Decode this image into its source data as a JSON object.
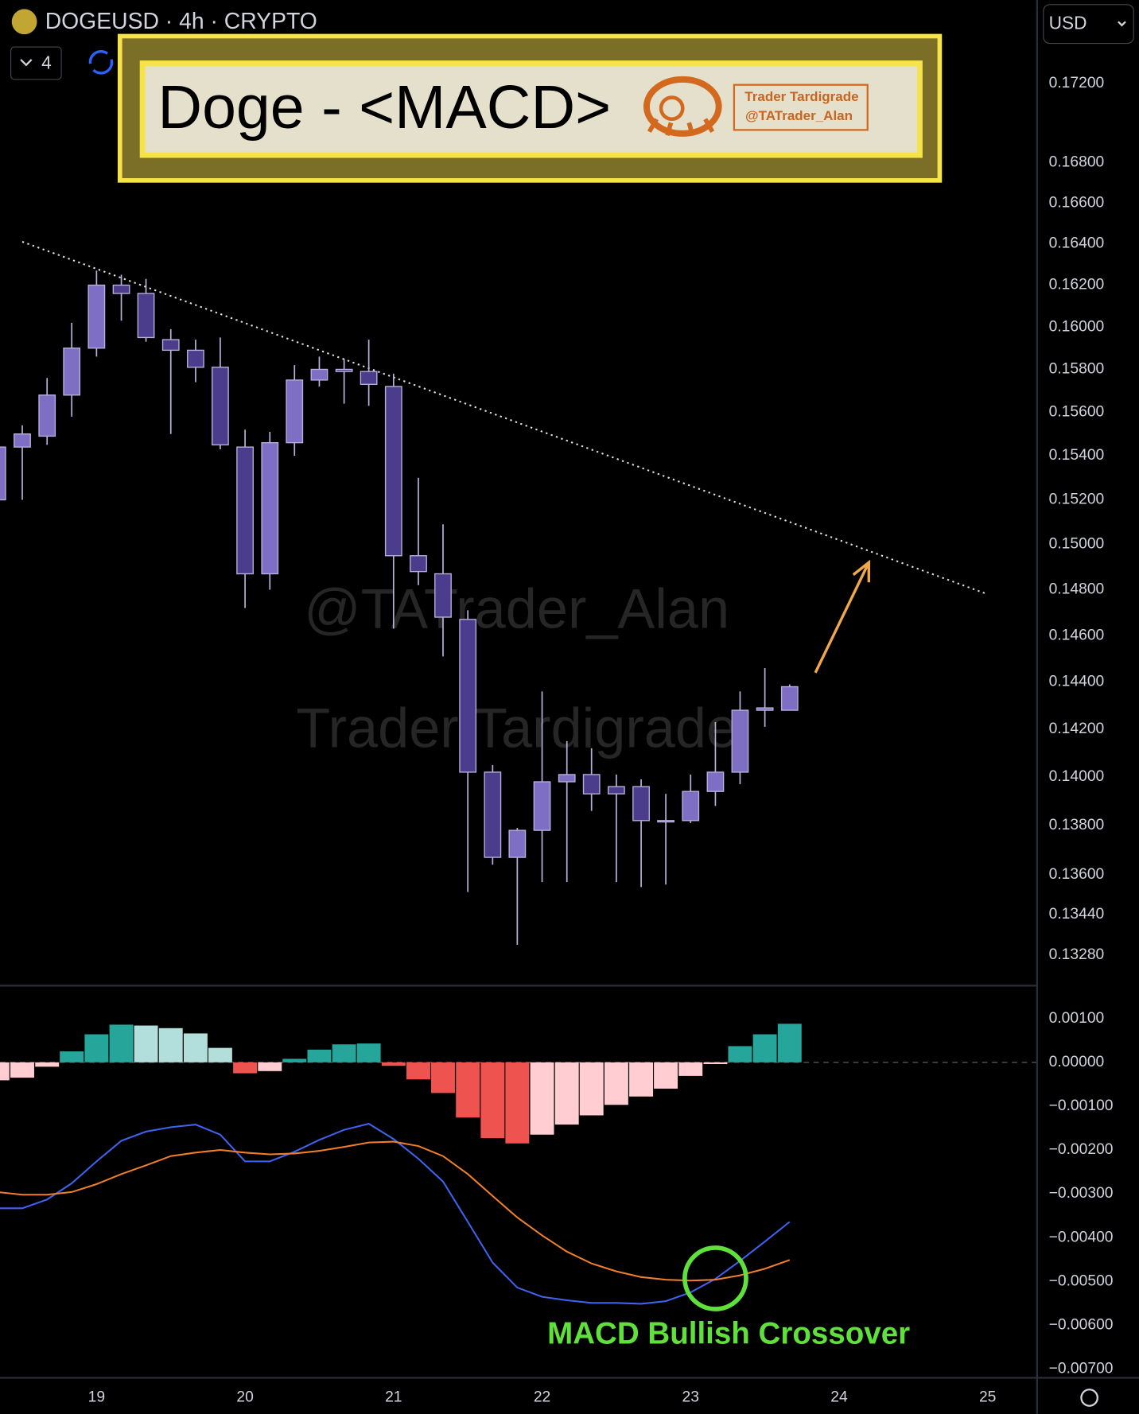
{
  "header": {
    "symbol": "DOGEUSD · 4h · CRYPTO",
    "interval_count": "4",
    "currency": "USD"
  },
  "banner": {
    "title": "Doge - <MACD>",
    "brand": "Trader Tardigrade",
    "handle": "@TATrader_Alan"
  },
  "chart_data": [
    {
      "type": "candlestick",
      "watermarks": [
        "@TATrader_Alan",
        "Trader Tardigrade"
      ],
      "x": [
        18.333,
        18.5,
        18.667,
        18.833,
        19,
        19.167,
        19.333,
        19.5,
        19.667,
        19.833,
        20,
        20.167,
        20.333,
        20.5,
        20.667,
        20.833,
        21,
        21.167,
        21.333,
        21.5,
        21.667,
        21.833,
        22,
        22.167,
        22.333,
        22.5,
        22.667,
        22.833,
        23,
        23.167,
        23.333,
        23.5,
        23.667
      ],
      "open": [
        0.152,
        0.1544,
        0.1549,
        0.1568,
        0.159,
        0.162,
        0.1616,
        0.1594,
        0.1589,
        0.1581,
        0.1544,
        0.1487,
        0.1546,
        0.1575,
        0.158,
        0.1579,
        0.1572,
        0.1495,
        0.1487,
        0.1467,
        0.1402,
        0.1367,
        0.1378,
        0.1398,
        0.1401,
        0.1396,
        0.1396,
        0.1382,
        0.1382,
        0.1394,
        0.1402,
        0.1428,
        0.1428
      ],
      "high": [
        0.1548,
        0.1554,
        0.1576,
        0.1602,
        0.1627,
        0.1625,
        0.1623,
        0.1599,
        0.1594,
        0.1595,
        0.1552,
        0.1551,
        0.1582,
        0.1586,
        0.1585,
        0.1594,
        0.1578,
        0.153,
        0.1509,
        0.1471,
        0.1405,
        0.1379,
        0.1436,
        0.1415,
        0.1412,
        0.1401,
        0.1399,
        0.1393,
        0.1401,
        0.1423,
        0.1436,
        0.1446,
        0.1439
      ],
      "low": [
        0.1515,
        0.152,
        0.1545,
        0.1558,
        0.1586,
        0.1603,
        0.1593,
        0.155,
        0.1574,
        0.1543,
        0.1472,
        0.148,
        0.154,
        0.1572,
        0.1564,
        0.1563,
        0.1463,
        0.1482,
        0.1451,
        0.1353,
        0.1364,
        0.1332,
        0.1357,
        0.1357,
        0.1386,
        0.1357,
        0.1355,
        0.1356,
        0.1381,
        0.1388,
        0.1397,
        0.1421,
        0.1428
      ],
      "close": [
        0.1544,
        0.155,
        0.1568,
        0.159,
        0.162,
        0.1616,
        0.1595,
        0.1589,
        0.1581,
        0.1545,
        0.1487,
        0.1546,
        0.1575,
        0.158,
        0.1579,
        0.1573,
        0.1495,
        0.1488,
        0.1468,
        0.1402,
        0.1367,
        0.1378,
        0.1398,
        0.1401,
        0.1393,
        0.1393,
        0.1382,
        0.1382,
        0.1394,
        0.1402,
        0.1428,
        0.1429,
        0.1438
      ],
      "up_color": "#7f6fc4",
      "down_color": "#4b3d8c",
      "wick_color": "#b9b0dc",
      "log_scale": true,
      "xlim": [
        18.35,
        25.333
      ],
      "ylim": [
        0.1317,
        0.1763
      ],
      "yticks": [
        {
          "value": 0.172,
          "label": "0.17200"
        },
        {
          "value": 0.168,
          "label": "0.16800"
        },
        {
          "value": 0.166,
          "label": "0.16600"
        },
        {
          "value": 0.164,
          "label": "0.16400"
        },
        {
          "value": 0.162,
          "label": "0.16200"
        },
        {
          "value": 0.16,
          "label": "0.16000"
        },
        {
          "value": 0.158,
          "label": "0.15800"
        },
        {
          "value": 0.156,
          "label": "0.15600"
        },
        {
          "value": 0.154,
          "label": "0.15400"
        },
        {
          "value": 0.152,
          "label": "0.15200"
        },
        {
          "value": 0.15,
          "label": "0.15000"
        },
        {
          "value": 0.148,
          "label": "0.14800"
        },
        {
          "value": 0.146,
          "label": "0.14600"
        },
        {
          "value": 0.144,
          "label": "0.14400"
        },
        {
          "value": 0.142,
          "label": "0.14200"
        },
        {
          "value": 0.14,
          "label": "0.14000"
        },
        {
          "value": 0.138,
          "label": "0.13800"
        },
        {
          "value": 0.136,
          "label": "0.13600"
        },
        {
          "value": 0.1344,
          "label": "0.13440"
        },
        {
          "value": 0.1328,
          "label": "0.13280"
        }
      ],
      "trendline": {
        "x": [
          18.5,
          25
        ],
        "y": [
          0.1641,
          0.1478
        ],
        "color": "#e6e6e6"
      },
      "arrow": {
        "x": [
          23.84,
          24.2
        ],
        "y": [
          0.1444,
          0.1492
        ],
        "color": "#f0a94a"
      }
    },
    {
      "type": "macd",
      "x": [
        18.333,
        18.5,
        18.667,
        18.833,
        19,
        19.167,
        19.333,
        19.5,
        19.667,
        19.833,
        20,
        20.167,
        20.333,
        20.5,
        20.667,
        20.833,
        21,
        21.167,
        21.333,
        21.5,
        21.667,
        21.833,
        22,
        22.167,
        22.333,
        22.5,
        22.667,
        22.833,
        23,
        23.167,
        23.333,
        23.5,
        23.667
      ],
      "histogram": {
        "values": [
          -0.00041,
          -0.00035,
          -0.0001,
          0.00025,
          0.00064,
          0.00086,
          0.00084,
          0.00078,
          0.00066,
          0.00033,
          -0.00025,
          -0.0002,
          8e-05,
          0.00029,
          0.00041,
          0.00043,
          -8e-05,
          -0.00039,
          -0.0007,
          -0.00126,
          -0.00173,
          -0.00185,
          -0.00165,
          -0.00142,
          -0.00121,
          -0.00097,
          -0.00078,
          -0.0006,
          -0.00031,
          -4e-05,
          0.00037,
          0.00064,
          0.00088
        ],
        "colors": [
          "#ffcdd2",
          "#ffcdd2",
          "#ffcdd2",
          "#26a69a",
          "#26a69a",
          "#26a69a",
          "#b2dfdb",
          "#b2dfdb",
          "#b2dfdb",
          "#b2dfdb",
          "#ef5350",
          "#ffcdd2",
          "#26a69a",
          "#26a69a",
          "#26a69a",
          "#26a69a",
          "#ef5350",
          "#ef5350",
          "#ef5350",
          "#ef5350",
          "#ef5350",
          "#ef5350",
          "#ffcdd2",
          "#ffcdd2",
          "#ffcdd2",
          "#ffcdd2",
          "#ffcdd2",
          "#ffcdd2",
          "#ffcdd2",
          "#ffcdd2",
          "#26a69a",
          "#26a69a",
          "#26a69a"
        ]
      },
      "series": [
        {
          "color": "#3f63f0",
          "values": [
            -0.00333,
            -0.00333,
            -0.00313,
            -0.00276,
            -0.00226,
            -0.00179,
            -0.00158,
            -0.00148,
            -0.00142,
            -0.00165,
            -0.00226,
            -0.00226,
            -0.00204,
            -0.00177,
            -0.00154,
            -0.0014,
            -0.00175,
            -0.0022,
            -0.00272,
            -0.00364,
            -0.00457,
            -0.00514,
            -0.00535,
            -0.00543,
            -0.00549,
            -0.00549,
            -0.00551,
            -0.00545,
            -0.00525,
            -0.00494,
            -0.00453,
            -0.00409,
            -0.00364
          ]
        },
        {
          "color": "#f07f2c",
          "values": [
            -0.00296,
            -0.00302,
            -0.00302,
            -0.00296,
            -0.00278,
            -0.00255,
            -0.00235,
            -0.00214,
            -0.00206,
            -0.002,
            -0.00206,
            -0.0021,
            -0.00208,
            -0.00202,
            -0.00193,
            -0.00183,
            -0.00181,
            -0.00191,
            -0.00214,
            -0.00255,
            -0.00305,
            -0.00354,
            -0.00395,
            -0.00432,
            -0.00459,
            -0.00477,
            -0.0049,
            -0.00496,
            -0.00498,
            -0.00496,
            -0.00486,
            -0.00471,
            -0.00451
          ]
        }
      ],
      "zero_line": true,
      "highlight": {
        "x": 23.167,
        "y": -0.00493,
        "color": "#5fe03a"
      },
      "annotation": "MACD Bullish Crossover",
      "xlim": [
        18.35,
        25.333
      ],
      "ylim": [
        -0.0072,
        0.00173
      ],
      "yticks": [
        {
          "value": 0.001,
          "label": "0.00100"
        },
        {
          "value": 0,
          "label": "0.00000"
        },
        {
          "value": -0.001,
          "label": "−0.00100"
        },
        {
          "value": -0.002,
          "label": "−0.00200"
        },
        {
          "value": -0.003,
          "label": "−0.00300"
        },
        {
          "value": -0.004,
          "label": "−0.00400"
        },
        {
          "value": -0.005,
          "label": "−0.00500"
        },
        {
          "value": -0.006,
          "label": "−0.00600"
        },
        {
          "value": -0.007,
          "label": "−0.00700"
        }
      ],
      "xticks": [
        19,
        20,
        21,
        22,
        23,
        24,
        25
      ]
    }
  ]
}
